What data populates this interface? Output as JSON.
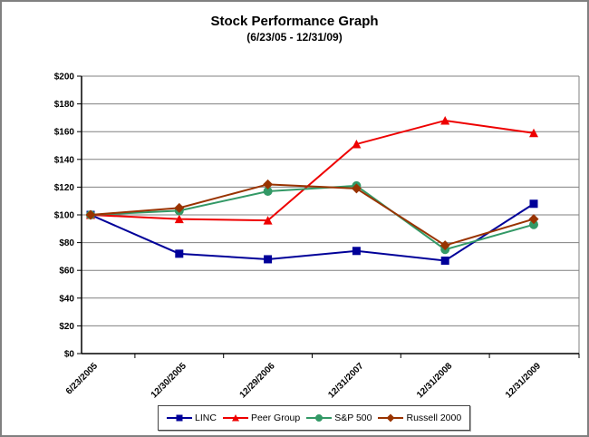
{
  "chart_data": {
    "type": "line",
    "title": "Stock Performance Graph",
    "subtitle": "(6/23/05 - 12/31/09)",
    "categories": [
      "6/23/2005",
      "12/30/2005",
      "12/29/2006",
      "12/31/2007",
      "12/31/2008",
      "12/31/2009"
    ],
    "series": [
      {
        "name": "LINC",
        "color": "#000099",
        "marker": "square",
        "values": [
          100,
          72,
          68,
          74,
          67,
          108
        ]
      },
      {
        "name": "Peer Group",
        "color": "#ee0000",
        "marker": "triangle",
        "values": [
          100,
          97,
          96,
          151,
          168,
          159
        ]
      },
      {
        "name": "S&P 500",
        "color": "#339966",
        "marker": "circle",
        "values": [
          100,
          103,
          117,
          121,
          75,
          93
        ]
      },
      {
        "name": "Russell 2000",
        "color": "#993300",
        "marker": "diamond",
        "values": [
          100,
          105,
          122,
          119,
          78,
          97
        ]
      }
    ],
    "ylim": [
      0,
      200
    ],
    "y_tick_step": 20,
    "y_tick_labels": [
      "$0",
      "$20",
      "$40",
      "$60",
      "$80",
      "$100",
      "$120",
      "$140",
      "$160",
      "$180",
      "$200"
    ],
    "xlabel": "",
    "ylabel": "",
    "grid": "horizontal",
    "gridline_color": "#808080",
    "axis_color": "#000000",
    "legend_position": "bottom"
  }
}
